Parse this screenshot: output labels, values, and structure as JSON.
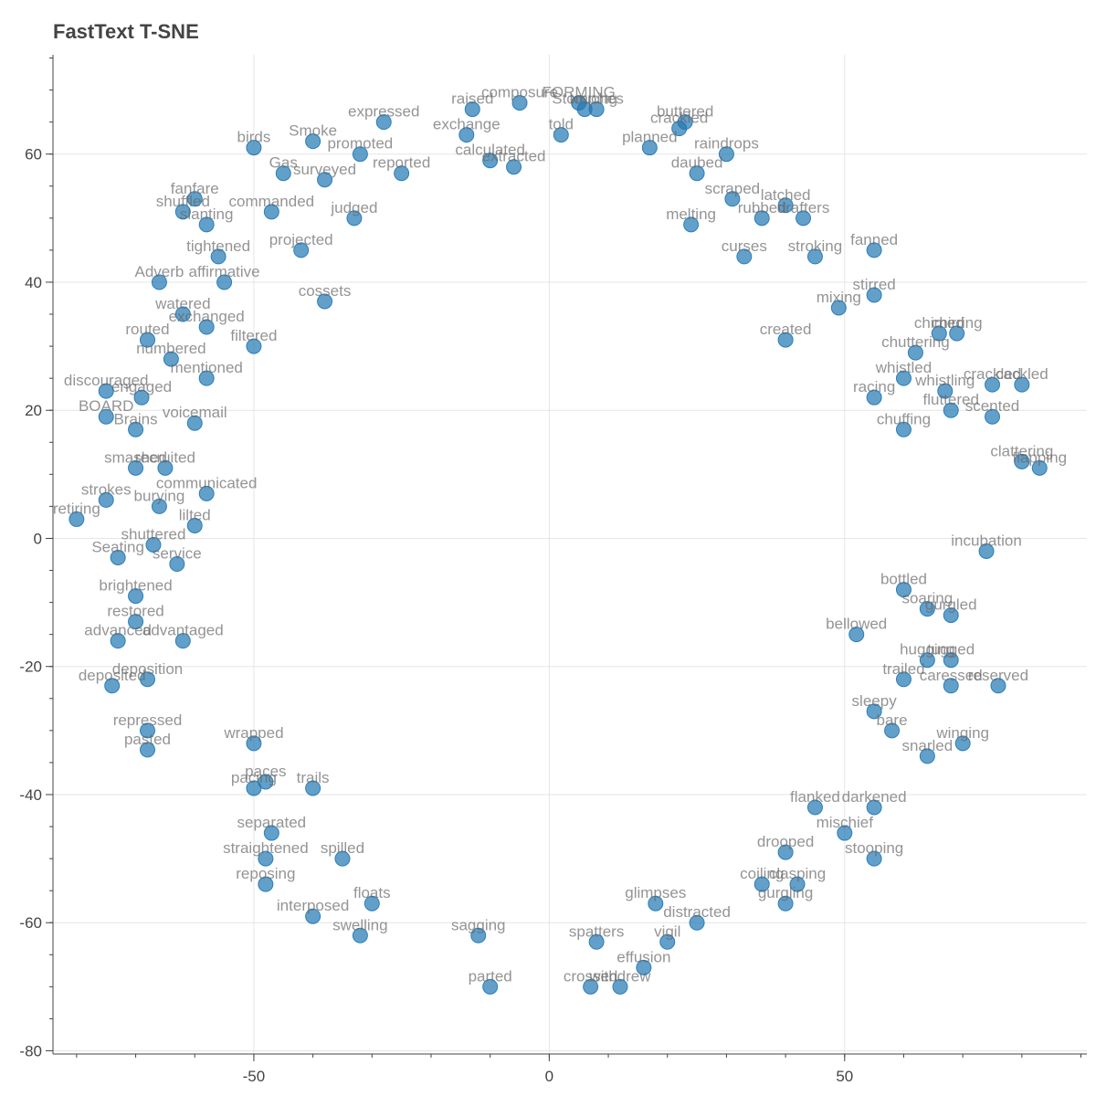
{
  "chart_data": {
    "type": "scatter",
    "title": "FastText T-SNE",
    "xlabel": "",
    "ylabel": "",
    "xlim": [
      -84,
      91
    ],
    "ylim": [
      -80.5,
      75.5
    ],
    "x_ticks": [
      -50,
      0,
      50
    ],
    "y_ticks": [
      -80,
      -60,
      -40,
      -20,
      0,
      20,
      40,
      60
    ],
    "x_minor_step": 10,
    "y_minor_step": 5,
    "grid": true,
    "colors": {
      "point": "#1f77b4",
      "label": "#666666",
      "axis": "#444444",
      "grid": "#e5e5e5"
    },
    "points": [
      {
        "x": -13,
        "y": 67,
        "label": "raised"
      },
      {
        "x": -5,
        "y": 68,
        "label": "composure"
      },
      {
        "x": 5,
        "y": 68,
        "label": "FORMING"
      },
      {
        "x": 6,
        "y": 67,
        "label": "Stomping"
      },
      {
        "x": 8,
        "y": 67,
        "label": "touches"
      },
      {
        "x": 23,
        "y": 65,
        "label": "buttered"
      },
      {
        "x": -28,
        "y": 65,
        "label": "expressed"
      },
      {
        "x": -40,
        "y": 62,
        "label": "Smoke"
      },
      {
        "x": -50,
        "y": 61,
        "label": "birds"
      },
      {
        "x": -14,
        "y": 63,
        "label": "exchange"
      },
      {
        "x": 2,
        "y": 63,
        "label": "told"
      },
      {
        "x": 17,
        "y": 61,
        "label": "planned"
      },
      {
        "x": 22,
        "y": 64,
        "label": "crackled"
      },
      {
        "x": 30,
        "y": 60,
        "label": "raindrops"
      },
      {
        "x": -32,
        "y": 60,
        "label": "promoted"
      },
      {
        "x": -10,
        "y": 59,
        "label": "calculated"
      },
      {
        "x": -45,
        "y": 57,
        "label": "Gas"
      },
      {
        "x": -38,
        "y": 56,
        "label": "surveyed"
      },
      {
        "x": -25,
        "y": 57,
        "label": "reported"
      },
      {
        "x": -6,
        "y": 58,
        "label": "extracted"
      },
      {
        "x": 25,
        "y": 57,
        "label": "daubed"
      },
      {
        "x": -60,
        "y": 53,
        "label": "fanfare"
      },
      {
        "x": -62,
        "y": 51,
        "label": "shuffled"
      },
      {
        "x": -58,
        "y": 49,
        "label": "slanting"
      },
      {
        "x": -47,
        "y": 51,
        "label": "commanded"
      },
      {
        "x": -33,
        "y": 50,
        "label": "judged"
      },
      {
        "x": 31,
        "y": 53,
        "label": "scraped"
      },
      {
        "x": 24,
        "y": 49,
        "label": "melting"
      },
      {
        "x": 36,
        "y": 50,
        "label": "rubbed"
      },
      {
        "x": 43,
        "y": 50,
        "label": "drafters"
      },
      {
        "x": 40,
        "y": 52,
        "label": "latched"
      },
      {
        "x": 55,
        "y": 45,
        "label": "fanned"
      },
      {
        "x": -56,
        "y": 44,
        "label": "tightened"
      },
      {
        "x": -42,
        "y": 45,
        "label": "projected"
      },
      {
        "x": 33,
        "y": 44,
        "label": "curses"
      },
      {
        "x": 45,
        "y": 44,
        "label": "stroking"
      },
      {
        "x": -66,
        "y": 40,
        "label": "Adverb"
      },
      {
        "x": -55,
        "y": 40,
        "label": "affirmative"
      },
      {
        "x": -38,
        "y": 37,
        "label": "cossets"
      },
      {
        "x": 55,
        "y": 38,
        "label": "stirred"
      },
      {
        "x": 49,
        "y": 36,
        "label": "mixing"
      },
      {
        "x": -62,
        "y": 35,
        "label": "watered"
      },
      {
        "x": -58,
        "y": 33,
        "label": "exchanged"
      },
      {
        "x": -68,
        "y": 31,
        "label": "routed"
      },
      {
        "x": -50,
        "y": 30,
        "label": "filtered"
      },
      {
        "x": 66,
        "y": 32,
        "label": "chimed"
      },
      {
        "x": 69,
        "y": 32,
        "label": "chirring"
      },
      {
        "x": 62,
        "y": 29,
        "label": "chuttering"
      },
      {
        "x": -64,
        "y": 28,
        "label": "numbered"
      },
      {
        "x": 40,
        "y": 31,
        "label": "created"
      },
      {
        "x": 60,
        "y": 25,
        "label": "whistled"
      },
      {
        "x": 75,
        "y": 24,
        "label": "crackled"
      },
      {
        "x": 80,
        "y": 24,
        "label": "cackled"
      },
      {
        "x": 67,
        "y": 23,
        "label": "whistling"
      },
      {
        "x": -75,
        "y": 23,
        "label": "discouraged"
      },
      {
        "x": -69,
        "y": 22,
        "label": "engaged"
      },
      {
        "x": -58,
        "y": 25,
        "label": "mentioned"
      },
      {
        "x": 55,
        "y": 22,
        "label": "racing"
      },
      {
        "x": 68,
        "y": 20,
        "label": "fluttered"
      },
      {
        "x": 75,
        "y": 19,
        "label": "scented"
      },
      {
        "x": -70,
        "y": 17,
        "label": "Brains"
      },
      {
        "x": -75,
        "y": 19,
        "label": "BOARD"
      },
      {
        "x": -60,
        "y": 18,
        "label": "voicemail"
      },
      {
        "x": 60,
        "y": 17,
        "label": "chuffing"
      },
      {
        "x": 80,
        "y": 12,
        "label": "clattering"
      },
      {
        "x": 83,
        "y": 11,
        "label": "flapping"
      },
      {
        "x": -70,
        "y": 11,
        "label": "smashed"
      },
      {
        "x": -65,
        "y": 11,
        "label": "recruited"
      },
      {
        "x": -75,
        "y": 6,
        "label": "strokes"
      },
      {
        "x": -66,
        "y": 5,
        "label": "burying"
      },
      {
        "x": -58,
        "y": 7,
        "label": "communicated"
      },
      {
        "x": -80,
        "y": 3,
        "label": "retiring"
      },
      {
        "x": -60,
        "y": 2,
        "label": "lilted"
      },
      {
        "x": -67,
        "y": -1,
        "label": "shuttered"
      },
      {
        "x": -73,
        "y": -3,
        "label": "Seating"
      },
      {
        "x": -63,
        "y": -4,
        "label": "service"
      },
      {
        "x": 74,
        "y": -2,
        "label": "incubation"
      },
      {
        "x": 60,
        "y": -8,
        "label": "bottled"
      },
      {
        "x": -70,
        "y": -9,
        "label": "brightened"
      },
      {
        "x": 64,
        "y": -11,
        "label": "soaring"
      },
      {
        "x": 68,
        "y": -12,
        "label": "gurgled"
      },
      {
        "x": -70,
        "y": -13,
        "label": "restored"
      },
      {
        "x": -73,
        "y": -16,
        "label": "advanced"
      },
      {
        "x": -62,
        "y": -16,
        "label": "advantaged"
      },
      {
        "x": 52,
        "y": -15,
        "label": "bellowed"
      },
      {
        "x": 64,
        "y": -19,
        "label": "hugging"
      },
      {
        "x": 68,
        "y": -19,
        "label": "tugged"
      },
      {
        "x": 60,
        "y": -22,
        "label": "trailed"
      },
      {
        "x": 76,
        "y": -23,
        "label": "reserved"
      },
      {
        "x": 68,
        "y": -23,
        "label": "caressed"
      },
      {
        "x": -74,
        "y": -23,
        "label": "deposited"
      },
      {
        "x": -68,
        "y": -22,
        "label": "deposition"
      },
      {
        "x": 55,
        "y": -27,
        "label": "sleepy"
      },
      {
        "x": -68,
        "y": -30,
        "label": "repressed"
      },
      {
        "x": -68,
        "y": -33,
        "label": "pasted"
      },
      {
        "x": -50,
        "y": -32,
        "label": "wrapped"
      },
      {
        "x": 58,
        "y": -30,
        "label": "bare"
      },
      {
        "x": 70,
        "y": -32,
        "label": "winging"
      },
      {
        "x": 64,
        "y": -34,
        "label": "snarled"
      },
      {
        "x": -48,
        "y": -38,
        "label": "paces"
      },
      {
        "x": -50,
        "y": -39,
        "label": "pacing"
      },
      {
        "x": -40,
        "y": -39,
        "label": "trails"
      },
      {
        "x": 55,
        "y": -42,
        "label": "darkened"
      },
      {
        "x": 45,
        "y": -42,
        "label": "flanked"
      },
      {
        "x": 50,
        "y": -46,
        "label": "mischief"
      },
      {
        "x": -47,
        "y": -46,
        "label": "separated"
      },
      {
        "x": 40,
        "y": -49,
        "label": "drooped"
      },
      {
        "x": 55,
        "y": -50,
        "label": "stooping"
      },
      {
        "x": -48,
        "y": -50,
        "label": "straightened"
      },
      {
        "x": -35,
        "y": -50,
        "label": "spilled"
      },
      {
        "x": -48,
        "y": -54,
        "label": "reposing"
      },
      {
        "x": 36,
        "y": -54,
        "label": "coiling"
      },
      {
        "x": 42,
        "y": -54,
        "label": "clasping"
      },
      {
        "x": 40,
        "y": -57,
        "label": "gurgling"
      },
      {
        "x": -30,
        "y": -57,
        "label": "floats"
      },
      {
        "x": 18,
        "y": -57,
        "label": "glimpses"
      },
      {
        "x": 25,
        "y": -60,
        "label": "distracted"
      },
      {
        "x": -40,
        "y": -59,
        "label": "interposed"
      },
      {
        "x": -32,
        "y": -62,
        "label": "swelling"
      },
      {
        "x": -12,
        "y": -62,
        "label": "sagging"
      },
      {
        "x": 8,
        "y": -63,
        "label": "spatters"
      },
      {
        "x": 20,
        "y": -63,
        "label": "vigil"
      },
      {
        "x": 16,
        "y": -67,
        "label": "effusion"
      },
      {
        "x": -10,
        "y": -70,
        "label": "parted"
      },
      {
        "x": 7,
        "y": -70,
        "label": "crossed"
      },
      {
        "x": 12,
        "y": -70,
        "label": "withdrew"
      }
    ]
  }
}
